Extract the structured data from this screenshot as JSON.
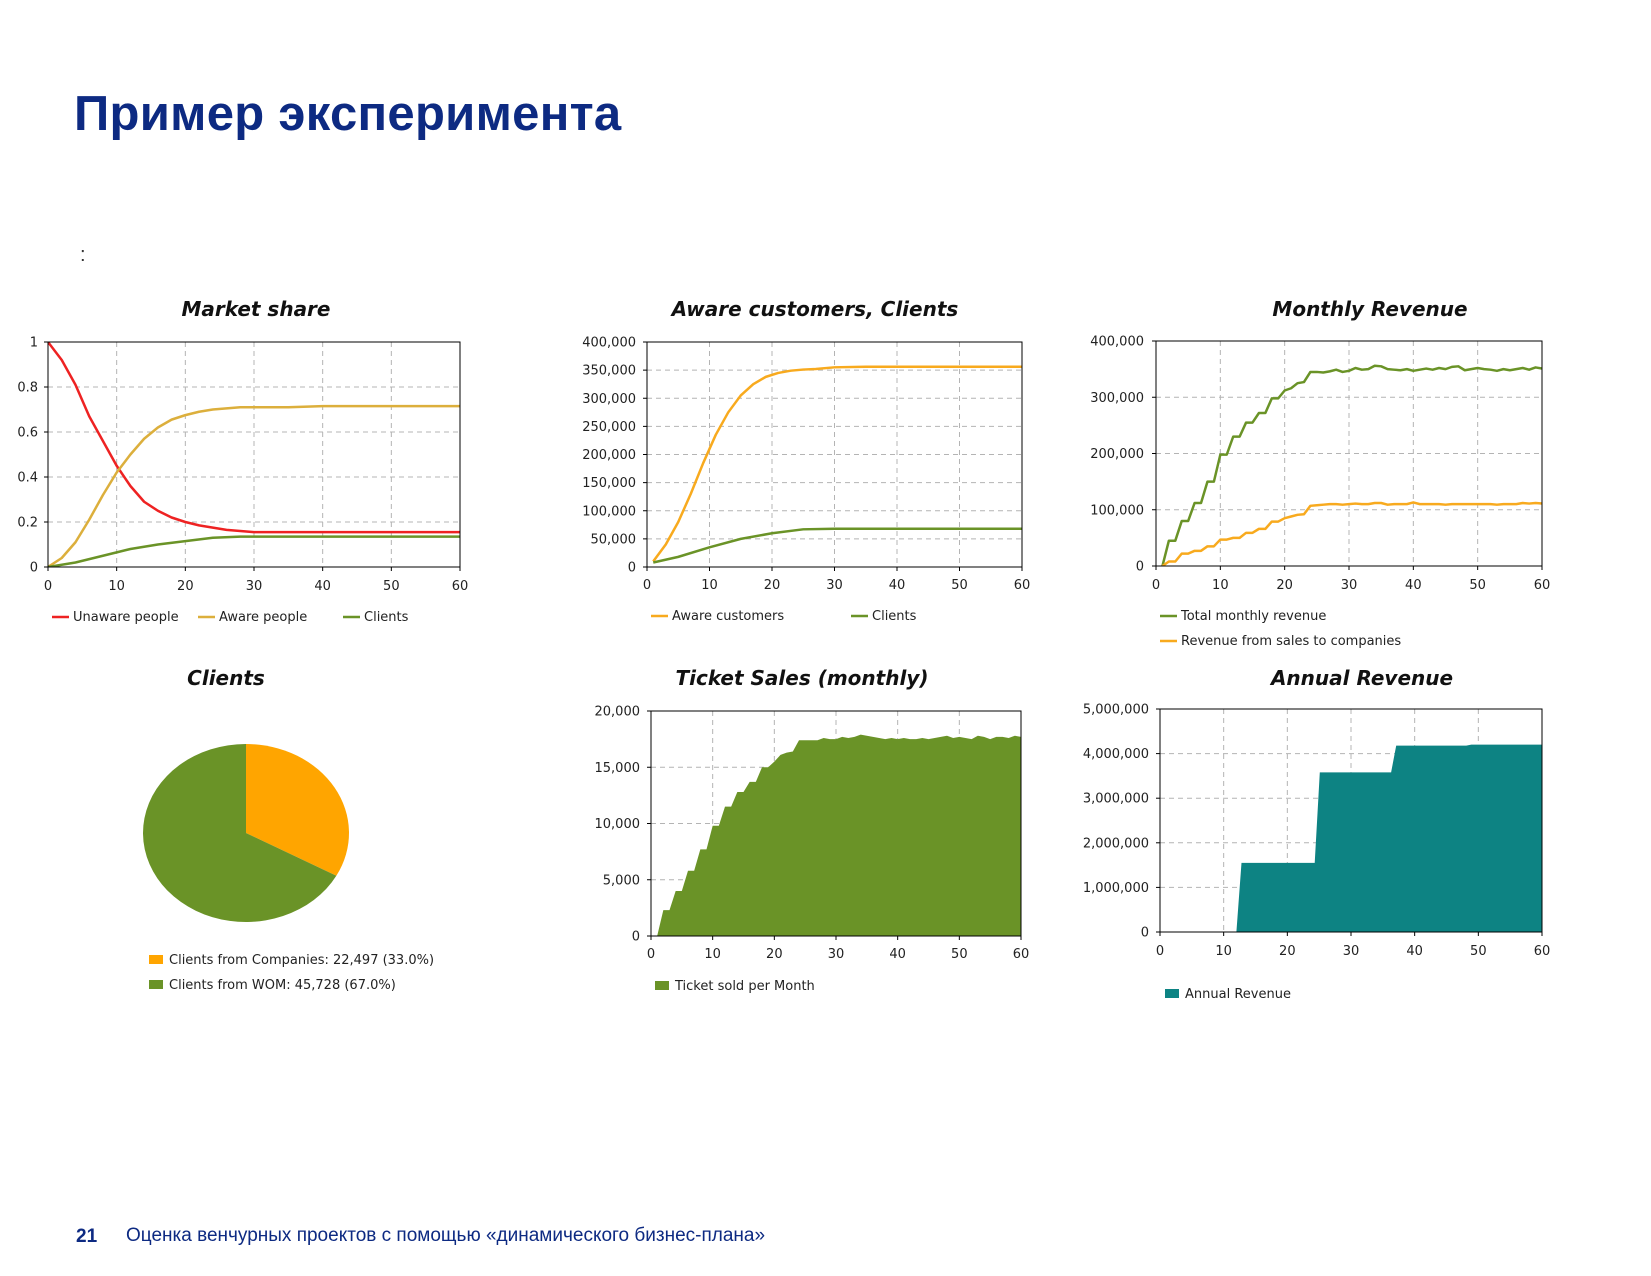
{
  "slide": {
    "title": "Пример эксперимента",
    "colon": ":",
    "page_number": "21",
    "footer": "Оценка венчурных проектов с помощью «динамического бизнес-плана»"
  },
  "colors": {
    "red": "#ee2222",
    "orange": "#f8aa1e",
    "gold": "#dcaf3c",
    "green": "#6a9327",
    "teal": "#0d8383"
  },
  "chart_data": [
    {
      "id": "market_share",
      "type": "line",
      "title": "Market share",
      "xlim": [
        0,
        60
      ],
      "ylim": [
        0,
        1
      ],
      "xticks": [
        0,
        10,
        20,
        30,
        40,
        50,
        60
      ],
      "xtick_labels": [
        "0",
        "10",
        "20",
        "30",
        "40",
        "50",
        "60"
      ],
      "yticks": [
        0,
        0.2,
        0.4,
        0.6,
        0.8,
        1
      ],
      "ytick_labels": [
        "0",
        "0.2",
        "0.4",
        "0.6",
        "0.8",
        "1"
      ],
      "grid": true,
      "legend_position": "bottom",
      "series": [
        {
          "name": "Unaware people",
          "color": "#ee2222",
          "x": [
            0,
            2,
            4,
            6,
            8,
            10,
            12,
            14,
            16,
            18,
            20,
            22,
            24,
            26,
            28,
            30,
            35,
            40,
            45,
            50,
            55,
            60
          ],
          "y": [
            1.0,
            0.92,
            0.81,
            0.67,
            0.56,
            0.45,
            0.36,
            0.29,
            0.25,
            0.22,
            0.2,
            0.185,
            0.175,
            0.165,
            0.16,
            0.155,
            0.155,
            0.155,
            0.155,
            0.155,
            0.155,
            0.155
          ]
        },
        {
          "name": "Aware people",
          "color": "#dcaf3c",
          "x": [
            0,
            2,
            4,
            6,
            8,
            10,
            12,
            14,
            16,
            18,
            20,
            22,
            24,
            26,
            28,
            30,
            35,
            40,
            45,
            50,
            55,
            60
          ],
          "y": [
            0.0,
            0.04,
            0.11,
            0.21,
            0.32,
            0.42,
            0.5,
            0.57,
            0.62,
            0.655,
            0.675,
            0.69,
            0.7,
            0.705,
            0.71,
            0.71,
            0.71,
            0.715,
            0.715,
            0.715,
            0.715,
            0.715
          ]
        },
        {
          "name": "Clients",
          "color": "#6a9327",
          "x": [
            0,
            4,
            8,
            12,
            16,
            20,
            24,
            28,
            32,
            40,
            50,
            60
          ],
          "y": [
            0.0,
            0.02,
            0.05,
            0.08,
            0.1,
            0.115,
            0.13,
            0.135,
            0.135,
            0.135,
            0.135,
            0.135
          ]
        }
      ]
    },
    {
      "id": "aware_clients",
      "type": "line",
      "title": "Aware customers, Clients",
      "xlim": [
        0,
        60
      ],
      "ylim": [
        0,
        400000
      ],
      "xticks": [
        0,
        10,
        20,
        30,
        40,
        50,
        60
      ],
      "xtick_labels": [
        "0",
        "10",
        "20",
        "30",
        "40",
        "50",
        "60"
      ],
      "yticks": [
        0,
        50000,
        100000,
        150000,
        200000,
        250000,
        300000,
        350000,
        400000
      ],
      "ytick_labels": [
        "0",
        "50,000",
        "100,000",
        "150,000",
        "200,000",
        "250,000",
        "300,000",
        "350,000",
        "400,000"
      ],
      "grid": true,
      "legend_position": "bottom",
      "series": [
        {
          "name": "Aware customers",
          "color": "#f8aa1e",
          "x": [
            1,
            3,
            5,
            7,
            9,
            11,
            13,
            15,
            17,
            19,
            21,
            23,
            25,
            27,
            30,
            35,
            40,
            50,
            60
          ],
          "y": [
            10000,
            40000,
            80000,
            130000,
            185000,
            235000,
            275000,
            305000,
            325000,
            338000,
            345000,
            349000,
            351000,
            352000,
            355000,
            356000,
            356000,
            356000,
            356000
          ]
        },
        {
          "name": "Clients",
          "color": "#6a9327",
          "x": [
            1,
            5,
            10,
            15,
            20,
            25,
            30,
            40,
            50,
            60
          ],
          "y": [
            8000,
            18000,
            35000,
            50000,
            60000,
            67000,
            68000,
            68000,
            68000,
            68000
          ]
        }
      ]
    },
    {
      "id": "monthly_revenue",
      "type": "line",
      "title": "Monthly Revenue",
      "xlim": [
        0,
        60
      ],
      "ylim": [
        0,
        400000
      ],
      "xticks": [
        0,
        10,
        20,
        30,
        40,
        50,
        60
      ],
      "xtick_labels": [
        "0",
        "10",
        "20",
        "30",
        "40",
        "50",
        "60"
      ],
      "yticks": [
        0,
        100000,
        200000,
        300000,
        400000
      ],
      "ytick_labels": [
        "0",
        "100,000",
        "200,000",
        "300,000",
        "400,000"
      ],
      "grid": true,
      "legend_position": "bottom",
      "series": [
        {
          "name": "Total monthly revenue",
          "color": "#6a9327",
          "x": [
            1,
            2,
            3,
            4,
            5,
            6,
            7,
            8,
            9,
            10,
            11,
            12,
            13,
            14,
            15,
            16,
            17,
            18,
            19,
            20,
            21,
            22,
            23,
            24,
            25,
            26,
            27,
            28,
            29,
            30,
            31,
            32,
            33,
            34,
            35,
            36,
            37,
            38,
            39,
            40,
            41,
            42,
            43,
            44,
            45,
            46,
            47,
            48,
            49,
            50,
            51,
            52,
            53,
            54,
            55,
            56,
            57,
            58,
            59,
            60
          ],
          "y": [
            0,
            45000,
            45000,
            80000,
            80000,
            112000,
            112000,
            150000,
            150000,
            198000,
            198000,
            230000,
            230000,
            255000,
            255000,
            272000,
            272000,
            298000,
            298000,
            312000,
            316000,
            325000,
            327000,
            345000,
            345000,
            344000,
            346000,
            349000,
            345000,
            347000,
            352000,
            349000,
            350000,
            356000,
            355000,
            350000,
            349000,
            348000,
            350000,
            347000,
            349000,
            351000,
            349000,
            352000,
            350000,
            354000,
            355000,
            348000,
            350000,
            352000,
            350000,
            349000,
            347000,
            350000,
            348000,
            350000,
            352000,
            349000,
            353000,
            351000
          ]
        },
        {
          "name": "Revenue from sales to companies",
          "color": "#f8aa1e",
          "x": [
            1,
            2,
            3,
            4,
            5,
            6,
            7,
            8,
            9,
            10,
            11,
            12,
            13,
            14,
            15,
            16,
            17,
            18,
            19,
            20,
            21,
            22,
            23,
            24,
            25,
            26,
            27,
            28,
            29,
            30,
            31,
            32,
            33,
            34,
            35,
            36,
            37,
            38,
            39,
            40,
            41,
            42,
            43,
            44,
            45,
            46,
            47,
            48,
            49,
            50,
            51,
            52,
            53,
            54,
            55,
            56,
            57,
            58,
            59,
            60
          ],
          "y": [
            0,
            8000,
            8000,
            22000,
            22000,
            27000,
            27000,
            35000,
            35000,
            47000,
            47000,
            50000,
            50000,
            59000,
            59000,
            66000,
            66000,
            79000,
            79000,
            85000,
            88000,
            91000,
            92000,
            107000,
            108000,
            109000,
            110000,
            110000,
            109000,
            110000,
            111000,
            110000,
            110000,
            112000,
            112000,
            109000,
            110000,
            110000,
            110000,
            113000,
            110000,
            110000,
            110000,
            110000,
            109000,
            110000,
            110000,
            110000,
            110000,
            110000,
            110000,
            110000,
            109000,
            110000,
            110000,
            110000,
            112000,
            111000,
            112000,
            111000
          ]
        }
      ]
    },
    {
      "id": "clients_pie",
      "type": "pie",
      "title": "Clients",
      "slices": [
        {
          "label": "Clients from Companies: 22,497 (33.0%)",
          "value": 22497,
          "percent": 33.0,
          "color": "#ffa500"
        },
        {
          "label": "Clients from WOM: 45,728 (67.0%)",
          "value": 45728,
          "percent": 67.0,
          "color": "#6a9327"
        }
      ],
      "legend_position": "bottom"
    },
    {
      "id": "ticket_sales",
      "type": "area",
      "title": "Ticket Sales (monthly)",
      "xlim": [
        0,
        60
      ],
      "ylim": [
        0,
        20000
      ],
      "xticks": [
        0,
        10,
        20,
        30,
        40,
        50,
        60
      ],
      "xtick_labels": [
        "0",
        "10",
        "20",
        "30",
        "40",
        "50",
        "60"
      ],
      "yticks": [
        0,
        5000,
        10000,
        15000,
        20000
      ],
      "ytick_labels": [
        "0",
        "5,000",
        "10,000",
        "15,000",
        "20,000"
      ],
      "grid": true,
      "legend_position": "bottom",
      "series": [
        {
          "name": "Ticket sold per Month",
          "color": "#6a9327",
          "x": [
            1,
            2,
            3,
            4,
            5,
            6,
            7,
            8,
            9,
            10,
            11,
            12,
            13,
            14,
            15,
            16,
            17,
            18,
            19,
            20,
            21,
            22,
            23,
            24,
            25,
            26,
            27,
            28,
            29,
            30,
            31,
            32,
            33,
            34,
            35,
            36,
            37,
            38,
            39,
            40,
            41,
            42,
            43,
            44,
            45,
            46,
            47,
            48,
            49,
            50,
            51,
            52,
            53,
            54,
            55,
            56,
            57,
            58,
            59,
            60
          ],
          "y": [
            0,
            2300,
            2300,
            4000,
            4000,
            5800,
            5800,
            7700,
            7700,
            9800,
            9800,
            11500,
            11500,
            12800,
            12800,
            13700,
            13700,
            15000,
            15000,
            15500,
            16100,
            16300,
            16400,
            17400,
            17400,
            17400,
            17400,
            17600,
            17500,
            17500,
            17700,
            17600,
            17700,
            17900,
            17800,
            17700,
            17600,
            17500,
            17600,
            17500,
            17600,
            17500,
            17500,
            17600,
            17500,
            17600,
            17700,
            17800,
            17600,
            17700,
            17600,
            17500,
            17800,
            17700,
            17500,
            17700,
            17700,
            17600,
            17800,
            17700
          ]
        }
      ]
    },
    {
      "id": "annual_revenue",
      "type": "area",
      "title": "Annual Revenue",
      "xlim": [
        0,
        60
      ],
      "ylim": [
        0,
        5000000
      ],
      "xticks": [
        0,
        10,
        20,
        30,
        40,
        50,
        60
      ],
      "xtick_labels": [
        "0",
        "10",
        "20",
        "30",
        "40",
        "50",
        "60"
      ],
      "yticks": [
        0,
        1000000,
        2000000,
        3000000,
        4000000,
        5000000
      ],
      "ytick_labels": [
        "0",
        "1,000,000",
        "2,000,000",
        "3,000,000",
        "4,000,000",
        "5,000,000"
      ],
      "grid": true,
      "legend_position": "bottom",
      "series": [
        {
          "name": "Annual Revenue",
          "color": "#0d8383",
          "x": [
            12,
            12.8,
            24.3,
            25.1,
            36.3,
            37.1,
            48.1,
            48.9,
            60
          ],
          "y": [
            0,
            1550000,
            1550000,
            3580000,
            3580000,
            4180000,
            4180000,
            4200000,
            4200000
          ]
        }
      ]
    }
  ]
}
